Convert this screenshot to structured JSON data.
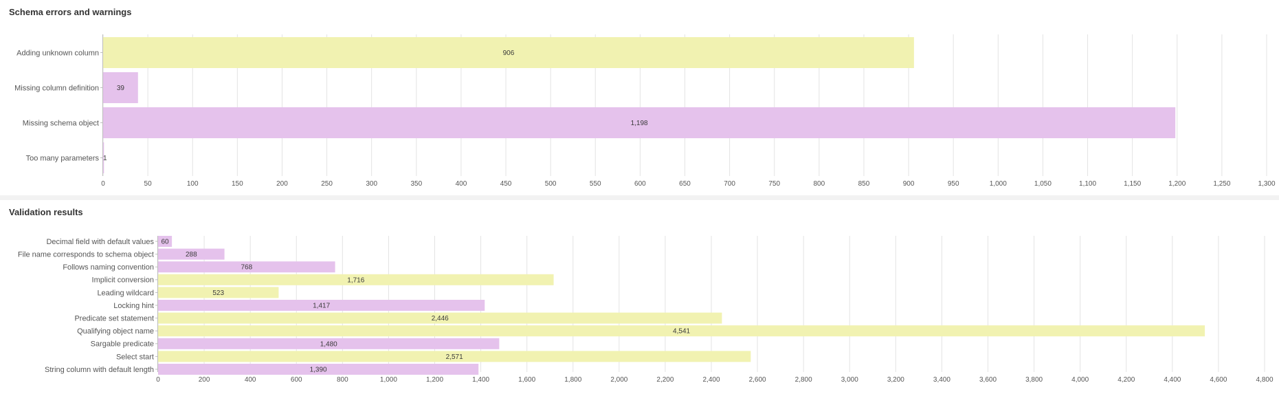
{
  "colors": {
    "yellow": "#f1f2b1",
    "pink": "#e5c2ec",
    "grid": "#e3e3e3",
    "axis": "#bdbdbd",
    "text": "#555555",
    "value_text": "#3a3a3a"
  },
  "chart_data": [
    {
      "type": "bar",
      "orientation": "horizontal",
      "title": "Schema errors and warnings",
      "categories": [
        "Adding unknown column",
        "Missing column definition",
        "Missing schema object",
        "Too many parameters"
      ],
      "values": [
        906,
        39,
        1198,
        1
      ],
      "value_labels": [
        "906",
        "39",
        "1,198",
        "1"
      ],
      "bar_colors": [
        "yellow",
        "pink",
        "pink",
        "pink"
      ],
      "xlim": [
        0,
        1300
      ],
      "xticks": [
        0,
        50,
        100,
        150,
        200,
        250,
        300,
        350,
        400,
        450,
        500,
        550,
        600,
        650,
        700,
        750,
        800,
        850,
        900,
        950,
        1000,
        1050,
        1100,
        1150,
        1200,
        1250,
        1300
      ],
      "xtick_labels": [
        "0",
        "50",
        "100",
        "150",
        "200",
        "250",
        "300",
        "350",
        "400",
        "450",
        "500",
        "550",
        "600",
        "650",
        "700",
        "750",
        "800",
        "850",
        "900",
        "950",
        "1,000",
        "1,050",
        "1,100",
        "1,150",
        "1,200",
        "1,250",
        "1,300"
      ],
      "grid": true
    },
    {
      "type": "bar",
      "orientation": "horizontal",
      "title": "Validation results",
      "categories": [
        "Decimal field with default values",
        "File name corresponds to schema object",
        "Follows naming convention",
        "Implicit conversion",
        "Leading wildcard",
        "Locking hint",
        "Predicate set statement",
        "Qualifying object name",
        "Sargable predicate",
        "Select start",
        "String column with default length"
      ],
      "values": [
        60,
        288,
        768,
        1716,
        523,
        1417,
        2446,
        4541,
        1480,
        2571,
        1390
      ],
      "value_labels": [
        "60",
        "288",
        "768",
        "1,716",
        "523",
        "1,417",
        "2,446",
        "4,541",
        "1,480",
        "2,571",
        "1,390"
      ],
      "bar_colors": [
        "pink",
        "pink",
        "pink",
        "yellow",
        "yellow",
        "pink",
        "yellow",
        "yellow",
        "pink",
        "yellow",
        "pink"
      ],
      "xlim": [
        0,
        4800
      ],
      "xticks": [
        0,
        200,
        400,
        600,
        800,
        1000,
        1200,
        1400,
        1600,
        1800,
        2000,
        2200,
        2400,
        2600,
        2800,
        3000,
        3200,
        3400,
        3600,
        3800,
        4000,
        4200,
        4400,
        4600,
        4800
      ],
      "xtick_labels": [
        "0",
        "200",
        "400",
        "600",
        "800",
        "1,000",
        "1,200",
        "1,400",
        "1,600",
        "1,800",
        "2,000",
        "2,200",
        "2,400",
        "2,600",
        "2,800",
        "3,000",
        "3,200",
        "3,400",
        "3,600",
        "3,800",
        "4,000",
        "4,200",
        "4,400",
        "4,600",
        "4,800"
      ],
      "grid": true
    }
  ]
}
